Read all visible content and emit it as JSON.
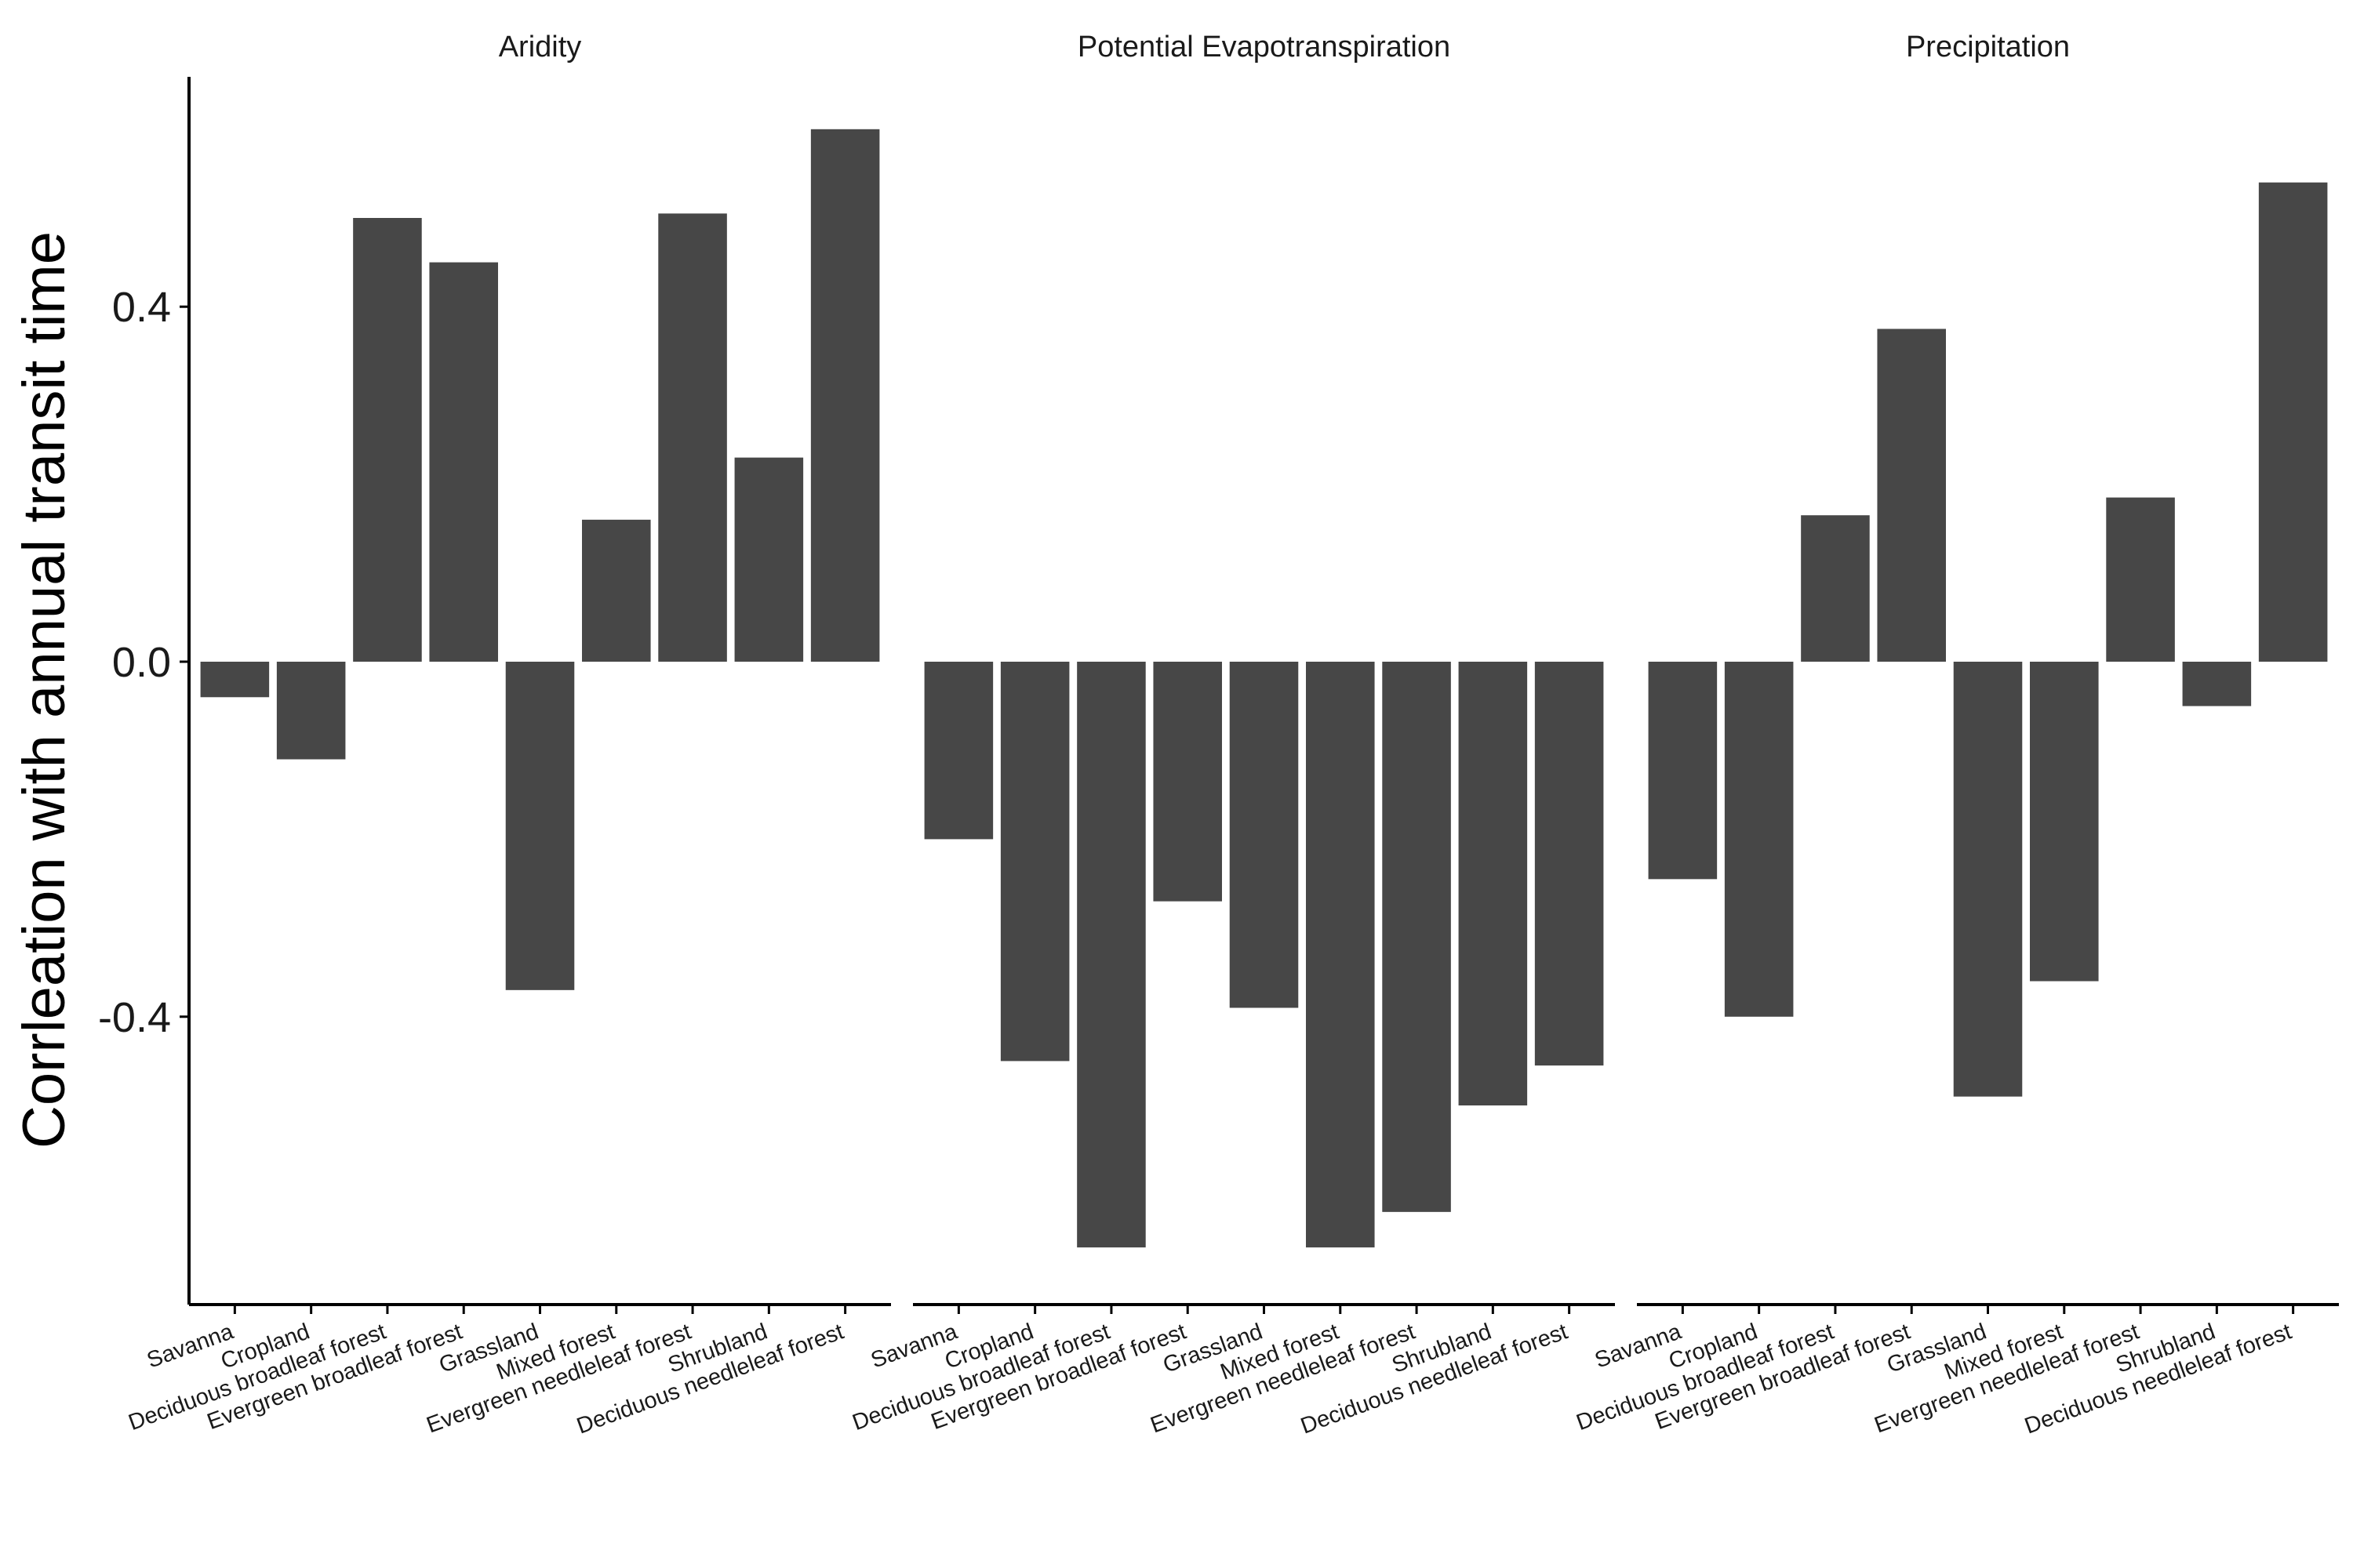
{
  "chart_data": {
    "type": "bar",
    "ylabel": "Corrleation with annual transit time",
    "xlabel": "",
    "ylim": [
      -0.72,
      0.66
    ],
    "yticks": [
      -0.4,
      0.0,
      0.4
    ],
    "ytick_labels": [
      "-0.4",
      "0.0",
      "0.4"
    ],
    "bar_color": "#474747",
    "grid": false,
    "categories": [
      "Savanna",
      "Cropland",
      "Deciduous broadleaf forest",
      "Evergreen broadleaf forest",
      "Grassland",
      "Mixed forest",
      "Evergreen needleleaf forest",
      "Shrubland",
      "Deciduous needleleaf forest"
    ],
    "facets": [
      {
        "title": "Aridity",
        "values": [
          -0.04,
          -0.11,
          0.5,
          0.45,
          -0.37,
          0.16,
          0.505,
          0.23,
          0.6
        ]
      },
      {
        "title": "Potential Evapotranspiration",
        "values": [
          -0.2,
          -0.45,
          -0.66,
          -0.27,
          -0.39,
          -0.66,
          -0.62,
          -0.5,
          -0.455
        ]
      },
      {
        "title": "Precipitation",
        "values": [
          -0.245,
          -0.4,
          0.165,
          0.375,
          -0.49,
          -0.36,
          0.185,
          -0.05,
          0.54
        ]
      }
    ]
  }
}
